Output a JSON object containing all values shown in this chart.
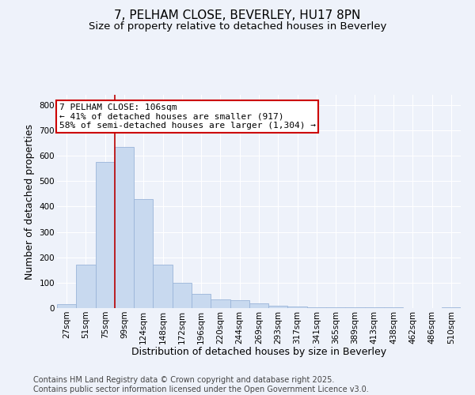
{
  "title": "7, PELHAM CLOSE, BEVERLEY, HU17 8PN",
  "subtitle": "Size of property relative to detached houses in Beverley",
  "xlabel": "Distribution of detached houses by size in Beverley",
  "ylabel": "Number of detached properties",
  "bar_color": "#c8d9ef",
  "bar_edge_color": "#9ab5d9",
  "background_color": "#eef2fa",
  "grid_color": "#ffffff",
  "categories": [
    "27sqm",
    "51sqm",
    "75sqm",
    "99sqm",
    "124sqm",
    "148sqm",
    "172sqm",
    "196sqm",
    "220sqm",
    "244sqm",
    "269sqm",
    "293sqm",
    "317sqm",
    "341sqm",
    "365sqm",
    "389sqm",
    "413sqm",
    "438sqm",
    "462sqm",
    "486sqm",
    "510sqm"
  ],
  "values": [
    15,
    170,
    575,
    635,
    430,
    170,
    100,
    55,
    35,
    30,
    20,
    10,
    5,
    4,
    4,
    3,
    4,
    2,
    1,
    1,
    3
  ],
  "ylim": [
    0,
    840
  ],
  "yticks": [
    0,
    100,
    200,
    300,
    400,
    500,
    600,
    700,
    800
  ],
  "vline_x": 2.5,
  "vline_color": "#bb0000",
  "annotation_text": "7 PELHAM CLOSE: 106sqm\n← 41% of detached houses are smaller (917)\n58% of semi-detached houses are larger (1,304) →",
  "annotation_box_facecolor": "#ffffff",
  "annotation_box_edgecolor": "#cc0000",
  "footer_text": "Contains HM Land Registry data © Crown copyright and database right 2025.\nContains public sector information licensed under the Open Government Licence v3.0.",
  "title_fontsize": 11,
  "subtitle_fontsize": 9.5,
  "axis_label_fontsize": 9,
  "tick_fontsize": 7.5,
  "annotation_fontsize": 8,
  "footer_fontsize": 7
}
